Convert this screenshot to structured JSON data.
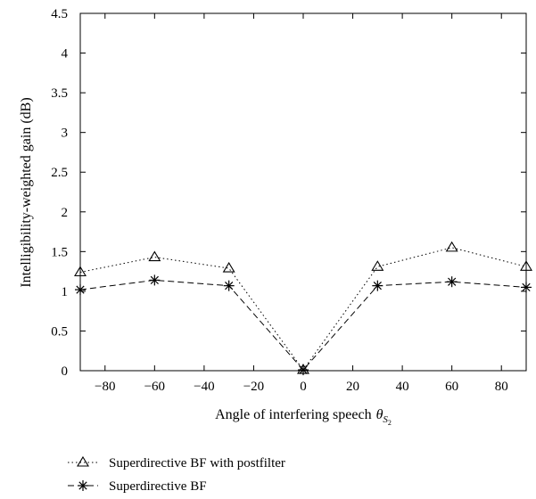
{
  "chart_data": {
    "type": "line",
    "xlabel": "Angle of interfering speech",
    "xlabel_symbol": "θ",
    "xlabel_subscript": "S",
    "xlabel_subsubscript": "2",
    "ylabel": "Intelligibility-weighted gain (dB)",
    "xlim": [
      -90,
      90
    ],
    "ylim": [
      0,
      4.5
    ],
    "xticks": [
      -80,
      -60,
      -40,
      -20,
      0,
      20,
      40,
      60,
      80
    ],
    "yticks": [
      0,
      0.5,
      1,
      1.5,
      2,
      2.5,
      3,
      3.5,
      4,
      4.5
    ],
    "grid": false,
    "legend_position": "below",
    "series": [
      {
        "name": "Superdirective BF with postfilter",
        "marker": "triangle",
        "line_style": "dotted",
        "x": [
          -90,
          -60,
          -30,
          0,
          30,
          60,
          90
        ],
        "y": [
          1.24,
          1.43,
          1.29,
          0.01,
          1.31,
          1.55,
          1.31
        ]
      },
      {
        "name": "Superdirective BF",
        "marker": "star",
        "line_style": "dashed",
        "x": [
          -90,
          -60,
          -30,
          0,
          30,
          60,
          90
        ],
        "y": [
          1.02,
          1.14,
          1.07,
          0.01,
          1.07,
          1.12,
          1.05
        ]
      }
    ]
  }
}
